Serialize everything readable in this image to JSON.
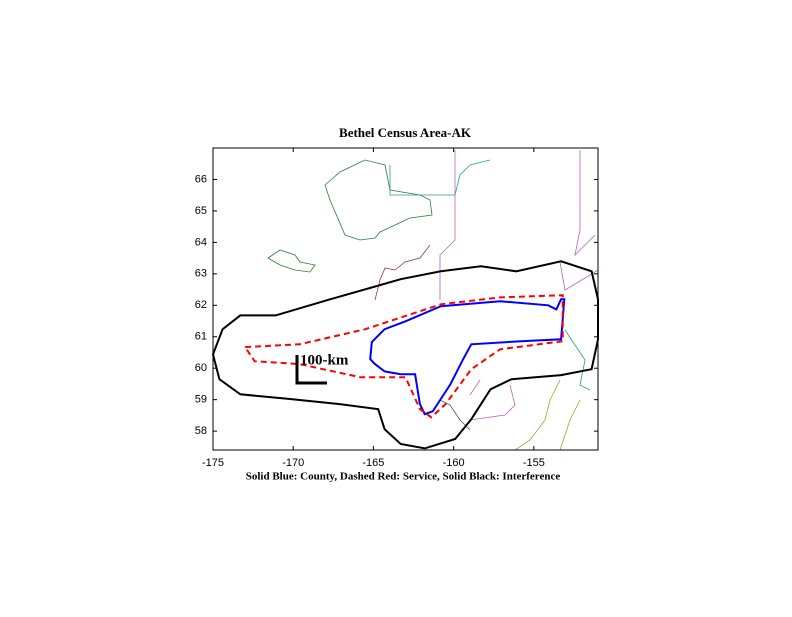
{
  "chart_data": {
    "type": "map",
    "title": "Bethel Census Area-AK",
    "x_label": "Solid Blue: County, Dashed Red: Service, Solid Black: Interference",
    "scale_label": "100-km",
    "xlim": [
      -175,
      -151
    ],
    "ylim": [
      57.4,
      67
    ],
    "xticks": [
      -175,
      -170,
      -165,
      -160,
      -155
    ],
    "yticks": [
      58,
      59,
      60,
      61,
      62,
      63,
      64,
      65,
      66
    ],
    "outlines": [
      {
        "color": "#000000",
        "dashed": false,
        "x": [
          -173.3,
          -171.1,
          -167.7,
          -163.3,
          -160.8,
          -158.3,
          -156.1,
          -153.3,
          -151.4,
          -151.0,
          -151.0,
          -151.4,
          -153.3,
          -156.4,
          -157.7,
          -158.9,
          -159.9,
          -161.8,
          -163.3,
          -164.3,
          -164.7,
          -167.1,
          -170.2,
          -173.3,
          -174.6,
          -175.0,
          -174.4
        ],
        "y": [
          61.68,
          61.68,
          62.19,
          62.83,
          63.08,
          63.24,
          63.08,
          63.4,
          63.08,
          62.19,
          60.92,
          59.97,
          59.78,
          59.65,
          59.33,
          58.38,
          57.75,
          57.45,
          57.59,
          58.06,
          58.7,
          58.86,
          59.02,
          59.17,
          59.65,
          60.44,
          61.24
        ]
      },
      {
        "color": "#0000ff",
        "dashed": false,
        "x": [
          -165.1,
          -164.3,
          -163.0,
          -160.8,
          -157.1,
          -154.1,
          -153.6,
          -153.3,
          -153.1,
          -153.3,
          -155.8,
          -158.9,
          -159.4,
          -160.2,
          -160.8,
          -161.3,
          -161.8,
          -162.1,
          -162.4,
          -163.3,
          -164.3,
          -164.9,
          -165.2
        ],
        "y": [
          60.83,
          61.24,
          61.49,
          61.97,
          62.13,
          62.0,
          61.87,
          62.19,
          62.19,
          60.92,
          60.86,
          60.76,
          60.29,
          59.49,
          59.02,
          58.63,
          58.54,
          58.86,
          59.81,
          59.81,
          59.9,
          60.13,
          60.29
        ]
      },
      {
        "color": "#ff0000",
        "dashed": true,
        "x": [
          -173.0,
          -169.6,
          -165.5,
          -160.8,
          -157.1,
          -153.2,
          -153.2,
          -157.1,
          -158.9,
          -160.5,
          -161.4,
          -162.1,
          -163.0,
          -165.8,
          -169.6,
          -172.4
        ],
        "y": [
          60.67,
          60.76,
          61.24,
          62.03,
          62.25,
          62.32,
          60.86,
          60.6,
          59.97,
          58.86,
          58.44,
          58.7,
          59.71,
          59.71,
          60.13,
          60.22
        ]
      }
    ]
  }
}
